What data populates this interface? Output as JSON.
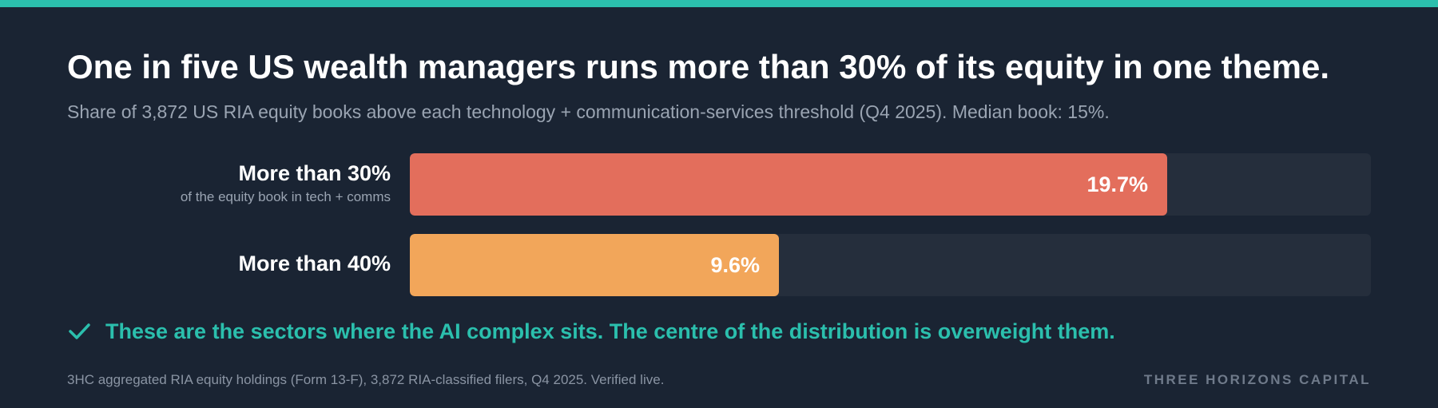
{
  "header": {
    "title": "One in five US wealth managers runs more than 30% of its equity in one theme.",
    "subtitle": "Share of 3,872 US RIA equity books above each technology + communication-services threshold (Q4 2025). Median book: 15%."
  },
  "chart_data": {
    "type": "bar",
    "orientation": "horizontal",
    "categories": [
      "More than 30%",
      "More than 40%"
    ],
    "category_notes": [
      "of the equity book in tech + comms",
      ""
    ],
    "values": [
      19.7,
      9.6
    ],
    "value_labels": [
      "19.7%",
      "9.6%"
    ],
    "colors": [
      "#e36e5c",
      "#f2a65a"
    ],
    "track_color": "#252e3c",
    "xlim": [
      0,
      25
    ],
    "grid": false,
    "legend": "none"
  },
  "callout": {
    "icon": "check-icon",
    "text": "These are the sectors where the AI complex sits. The centre of the distribution is overweight them.",
    "color": "#2bbfad"
  },
  "footer": {
    "source": "3HC aggregated RIA equity holdings (Form 13-F), 3,872 RIA-classified filers, Q4 2025. Verified live.",
    "brand": "THREE HORIZONS CAPITAL"
  },
  "theme": {
    "background": "#1a2433",
    "accent": "#2bbfad"
  }
}
